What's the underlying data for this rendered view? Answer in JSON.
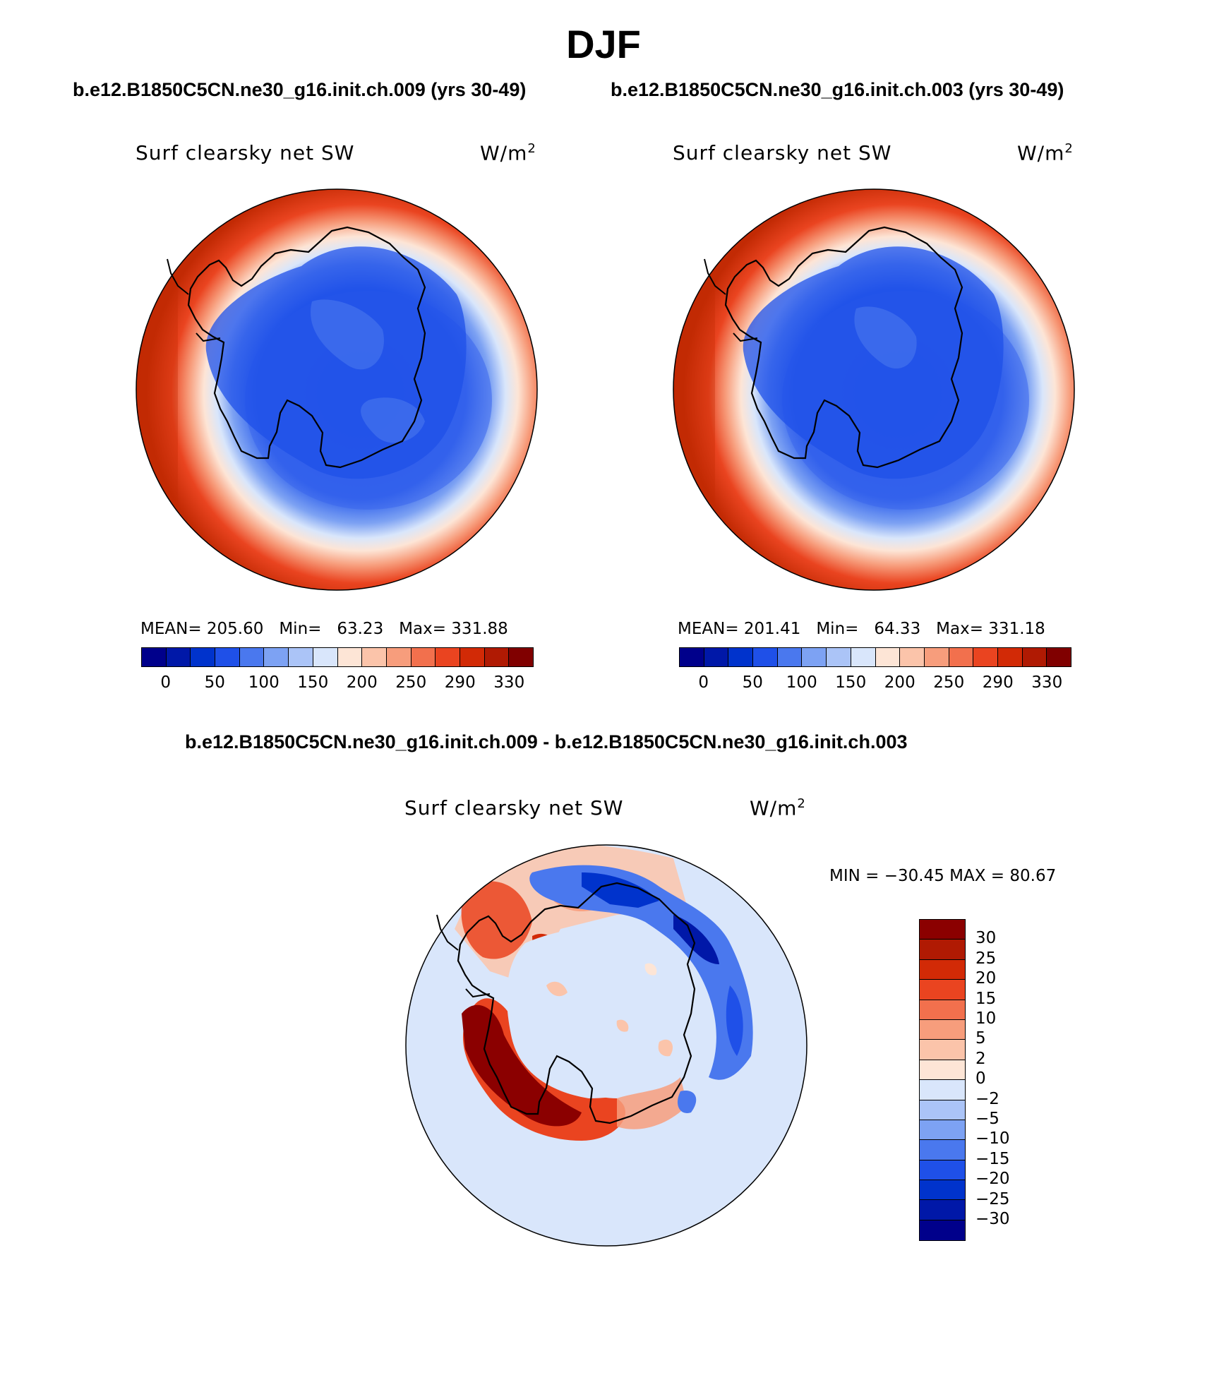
{
  "figure": {
    "season": "DJF",
    "left_subtitle": "b.e12.B1850C5CN.ne30_g16.init.ch.009 (yrs 30-49)",
    "right_subtitle": "b.e12.B1850C5CN.ne30_g16.init.ch.003 (yrs 30-49)",
    "diff_subtitle": "b.e12.B1850C5CN.ne30_g16.init.ch.009 - b.e12.B1850C5CN.ne30_g16.init.ch.003"
  },
  "panels": [
    {
      "variable": "Surf clearsky net SW",
      "units": "W/m",
      "units_exp": "2",
      "mean_label": "MEAN=",
      "mean": "205.60",
      "min_label": "Min=",
      "min": "63.23",
      "max_label": "Max=",
      "max": "331.88"
    },
    {
      "variable": "Surf clearsky net SW",
      "units": "W/m",
      "units_exp": "2",
      "mean_label": "MEAN=",
      "mean": "201.41",
      "min_label": "Min=",
      "min": "64.33",
      "max_label": "Max=",
      "max": "331.18"
    },
    {
      "variable": "Surf clearsky net SW",
      "units": "W/m",
      "units_exp": "2",
      "minmax_text": "MIN = −30.45 MAX =  80.67"
    }
  ],
  "colorbar_main": {
    "colors": [
      "#00008b",
      "#0018a8",
      "#0033cc",
      "#1f50e8",
      "#4a78ee",
      "#7da2f3",
      "#abc4f7",
      "#d9e6fb",
      "#fde5d6",
      "#fbc4aa",
      "#f79d7c",
      "#f2704d",
      "#ea4420",
      "#d22a06",
      "#b01a03",
      "#800000"
    ],
    "tick_labels": [
      "0",
      "50",
      "100",
      "150",
      "200",
      "250",
      "290",
      "330"
    ]
  },
  "colorbar_diff": {
    "colors": [
      "#8b0000",
      "#b01a03",
      "#d22a06",
      "#ea4420",
      "#f2704d",
      "#f79d7c",
      "#fbc4aa",
      "#fde5d6",
      "#d9e6fb",
      "#abc4f7",
      "#7da2f3",
      "#4a78ee",
      "#1f50e8",
      "#0033cc",
      "#0018a8",
      "#00008b"
    ],
    "tick_labels": [
      "30",
      "25",
      "20",
      "15",
      "10",
      "5",
      "2",
      "0",
      "−2",
      "−5",
      "−10",
      "−15",
      "−20",
      "−25",
      "−30"
    ]
  },
  "map_colors": {
    "ocean_warm": "#c22a04",
    "ocean_mid": "#e74a1e",
    "ocean_light": "#f79d7c",
    "ocean_pale": "#fde5d6",
    "sea_ice": "#abc4f7",
    "ice_sheet": "#1f50e8",
    "diff_base": "#d9e6fb",
    "diff_pos": "#8b0000",
    "diff_neg": "#1f50e8"
  }
}
